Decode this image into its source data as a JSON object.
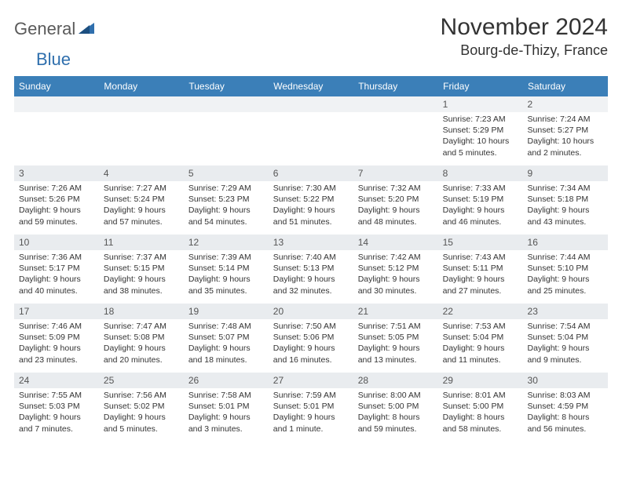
{
  "brand": {
    "general": "General",
    "blue": "Blue"
  },
  "title": "November 2024",
  "location": "Bourg-de-Thizy, France",
  "colors": {
    "header_bg": "#3b7fb8",
    "header_text": "#ffffff",
    "daynum_bg": "#e9ecef",
    "logo_gray": "#5a5a5a",
    "logo_blue": "#2f6fad"
  },
  "weekdays": [
    "Sunday",
    "Monday",
    "Tuesday",
    "Wednesday",
    "Thursday",
    "Friday",
    "Saturday"
  ],
  "weeks": [
    {
      "nums": [
        "",
        "",
        "",
        "",
        "",
        "1",
        "2"
      ],
      "cells": [
        null,
        null,
        null,
        null,
        null,
        {
          "sr": "Sunrise: 7:23 AM",
          "ss": "Sunset: 5:29 PM",
          "d1": "Daylight: 10 hours",
          "d2": "and 5 minutes."
        },
        {
          "sr": "Sunrise: 7:24 AM",
          "ss": "Sunset: 5:27 PM",
          "d1": "Daylight: 10 hours",
          "d2": "and 2 minutes."
        }
      ]
    },
    {
      "nums": [
        "3",
        "4",
        "5",
        "6",
        "7",
        "8",
        "9"
      ],
      "cells": [
        {
          "sr": "Sunrise: 7:26 AM",
          "ss": "Sunset: 5:26 PM",
          "d1": "Daylight: 9 hours",
          "d2": "and 59 minutes."
        },
        {
          "sr": "Sunrise: 7:27 AM",
          "ss": "Sunset: 5:24 PM",
          "d1": "Daylight: 9 hours",
          "d2": "and 57 minutes."
        },
        {
          "sr": "Sunrise: 7:29 AM",
          "ss": "Sunset: 5:23 PM",
          "d1": "Daylight: 9 hours",
          "d2": "and 54 minutes."
        },
        {
          "sr": "Sunrise: 7:30 AM",
          "ss": "Sunset: 5:22 PM",
          "d1": "Daylight: 9 hours",
          "d2": "and 51 minutes."
        },
        {
          "sr": "Sunrise: 7:32 AM",
          "ss": "Sunset: 5:20 PM",
          "d1": "Daylight: 9 hours",
          "d2": "and 48 minutes."
        },
        {
          "sr": "Sunrise: 7:33 AM",
          "ss": "Sunset: 5:19 PM",
          "d1": "Daylight: 9 hours",
          "d2": "and 46 minutes."
        },
        {
          "sr": "Sunrise: 7:34 AM",
          "ss": "Sunset: 5:18 PM",
          "d1": "Daylight: 9 hours",
          "d2": "and 43 minutes."
        }
      ]
    },
    {
      "nums": [
        "10",
        "11",
        "12",
        "13",
        "14",
        "15",
        "16"
      ],
      "cells": [
        {
          "sr": "Sunrise: 7:36 AM",
          "ss": "Sunset: 5:17 PM",
          "d1": "Daylight: 9 hours",
          "d2": "and 40 minutes."
        },
        {
          "sr": "Sunrise: 7:37 AM",
          "ss": "Sunset: 5:15 PM",
          "d1": "Daylight: 9 hours",
          "d2": "and 38 minutes."
        },
        {
          "sr": "Sunrise: 7:39 AM",
          "ss": "Sunset: 5:14 PM",
          "d1": "Daylight: 9 hours",
          "d2": "and 35 minutes."
        },
        {
          "sr": "Sunrise: 7:40 AM",
          "ss": "Sunset: 5:13 PM",
          "d1": "Daylight: 9 hours",
          "d2": "and 32 minutes."
        },
        {
          "sr": "Sunrise: 7:42 AM",
          "ss": "Sunset: 5:12 PM",
          "d1": "Daylight: 9 hours",
          "d2": "and 30 minutes."
        },
        {
          "sr": "Sunrise: 7:43 AM",
          "ss": "Sunset: 5:11 PM",
          "d1": "Daylight: 9 hours",
          "d2": "and 27 minutes."
        },
        {
          "sr": "Sunrise: 7:44 AM",
          "ss": "Sunset: 5:10 PM",
          "d1": "Daylight: 9 hours",
          "d2": "and 25 minutes."
        }
      ]
    },
    {
      "nums": [
        "17",
        "18",
        "19",
        "20",
        "21",
        "22",
        "23"
      ],
      "cells": [
        {
          "sr": "Sunrise: 7:46 AM",
          "ss": "Sunset: 5:09 PM",
          "d1": "Daylight: 9 hours",
          "d2": "and 23 minutes."
        },
        {
          "sr": "Sunrise: 7:47 AM",
          "ss": "Sunset: 5:08 PM",
          "d1": "Daylight: 9 hours",
          "d2": "and 20 minutes."
        },
        {
          "sr": "Sunrise: 7:48 AM",
          "ss": "Sunset: 5:07 PM",
          "d1": "Daylight: 9 hours",
          "d2": "and 18 minutes."
        },
        {
          "sr": "Sunrise: 7:50 AM",
          "ss": "Sunset: 5:06 PM",
          "d1": "Daylight: 9 hours",
          "d2": "and 16 minutes."
        },
        {
          "sr": "Sunrise: 7:51 AM",
          "ss": "Sunset: 5:05 PM",
          "d1": "Daylight: 9 hours",
          "d2": "and 13 minutes."
        },
        {
          "sr": "Sunrise: 7:53 AM",
          "ss": "Sunset: 5:04 PM",
          "d1": "Daylight: 9 hours",
          "d2": "and 11 minutes."
        },
        {
          "sr": "Sunrise: 7:54 AM",
          "ss": "Sunset: 5:04 PM",
          "d1": "Daylight: 9 hours",
          "d2": "and 9 minutes."
        }
      ]
    },
    {
      "nums": [
        "24",
        "25",
        "26",
        "27",
        "28",
        "29",
        "30"
      ],
      "cells": [
        {
          "sr": "Sunrise: 7:55 AM",
          "ss": "Sunset: 5:03 PM",
          "d1": "Daylight: 9 hours",
          "d2": "and 7 minutes."
        },
        {
          "sr": "Sunrise: 7:56 AM",
          "ss": "Sunset: 5:02 PM",
          "d1": "Daylight: 9 hours",
          "d2": "and 5 minutes."
        },
        {
          "sr": "Sunrise: 7:58 AM",
          "ss": "Sunset: 5:01 PM",
          "d1": "Daylight: 9 hours",
          "d2": "and 3 minutes."
        },
        {
          "sr": "Sunrise: 7:59 AM",
          "ss": "Sunset: 5:01 PM",
          "d1": "Daylight: 9 hours",
          "d2": "and 1 minute."
        },
        {
          "sr": "Sunrise: 8:00 AM",
          "ss": "Sunset: 5:00 PM",
          "d1": "Daylight: 8 hours",
          "d2": "and 59 minutes."
        },
        {
          "sr": "Sunrise: 8:01 AM",
          "ss": "Sunset: 5:00 PM",
          "d1": "Daylight: 8 hours",
          "d2": "and 58 minutes."
        },
        {
          "sr": "Sunrise: 8:03 AM",
          "ss": "Sunset: 4:59 PM",
          "d1": "Daylight: 8 hours",
          "d2": "and 56 minutes."
        }
      ]
    }
  ]
}
